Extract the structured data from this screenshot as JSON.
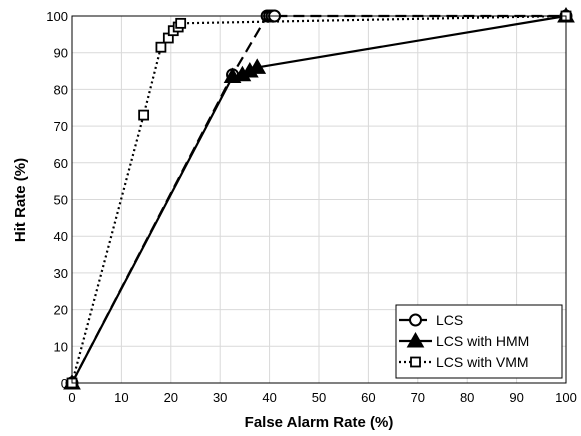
{
  "chart_data": {
    "type": "line",
    "xlabel": "False Alarm Rate (%)",
    "ylabel": "Hit Rate (%)",
    "xlim": [
      0,
      100
    ],
    "ylim": [
      0,
      100
    ],
    "xticks": [
      0,
      10,
      20,
      30,
      40,
      50,
      60,
      70,
      80,
      90,
      100
    ],
    "yticks": [
      0,
      10,
      20,
      30,
      40,
      50,
      60,
      70,
      80,
      90,
      100
    ],
    "grid": true,
    "legend_position": "bottom-right",
    "series": [
      {
        "name": "LCS",
        "line_style": "dashed",
        "marker": "circle",
        "x": [
          0,
          32.5,
          39.5,
          40,
          40.5,
          41
        ],
        "y": [
          0,
          84,
          100,
          100,
          100,
          100
        ],
        "end": [
          100,
          100
        ]
      },
      {
        "name": "LCS with HMM",
        "line_style": "solid",
        "marker": "triangle",
        "x": [
          0,
          32.5,
          34.5,
          36,
          37.5
        ],
        "y": [
          0,
          83.5,
          84,
          85,
          86
        ],
        "end": [
          100,
          100
        ]
      },
      {
        "name": "LCS with VMM",
        "line_style": "dotted",
        "marker": "square",
        "x": [
          0,
          14.5,
          18,
          19.5,
          20.5,
          21.5,
          22
        ],
        "y": [
          0,
          73,
          91.5,
          94,
          96,
          97,
          98
        ],
        "end": [
          100,
          100
        ]
      }
    ]
  }
}
